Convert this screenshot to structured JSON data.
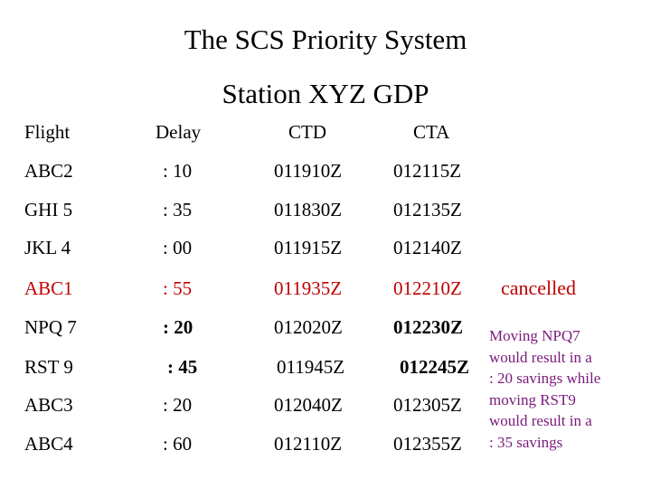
{
  "title": "The SCS Priority System",
  "subtitle": "Station XYZ GDP",
  "headers": [
    "Flight",
    "Delay",
    "CTD",
    "CTA"
  ],
  "rows": [
    {
      "flight": "ABC2",
      "delay": ": 10",
      "ctd": "011910Z",
      "cta": "012115Z"
    },
    {
      "flight": "GHI 5",
      "delay": ": 35",
      "ctd": "011830Z",
      "cta": "012135Z"
    },
    {
      "flight": "JKL 4",
      "delay": ": 00",
      "ctd": "011915Z",
      "cta": "012140Z"
    },
    {
      "flight": "ABC1",
      "delay": ": 55",
      "ctd": "011935Z",
      "cta": "012210Z"
    },
    {
      "flight": "NPQ 7",
      "delay": ": 20",
      "ctd": "012020Z",
      "cta": "012230Z"
    },
    {
      "flight": "RST 9",
      "delay": ": 45",
      "ctd": "011945Z",
      "cta": "012245Z"
    },
    {
      "flight": "ABC3",
      "delay": ": 20",
      "ctd": "012040Z",
      "cta": "012305Z"
    },
    {
      "flight": "ABC4",
      "delay": ": 60",
      "ctd": "012110Z",
      "cta": "012355Z"
    }
  ],
  "annotations": {
    "cancelled": "cancelled",
    "move_note": [
      "Moving NPQ7",
      "would result in a",
      ": 20 savings while",
      "moving RST9",
      "would result in a",
      ": 35 savings"
    ]
  },
  "colors": {
    "cancelled_row": "#c00000",
    "note_text": "#7a1a7a"
  }
}
